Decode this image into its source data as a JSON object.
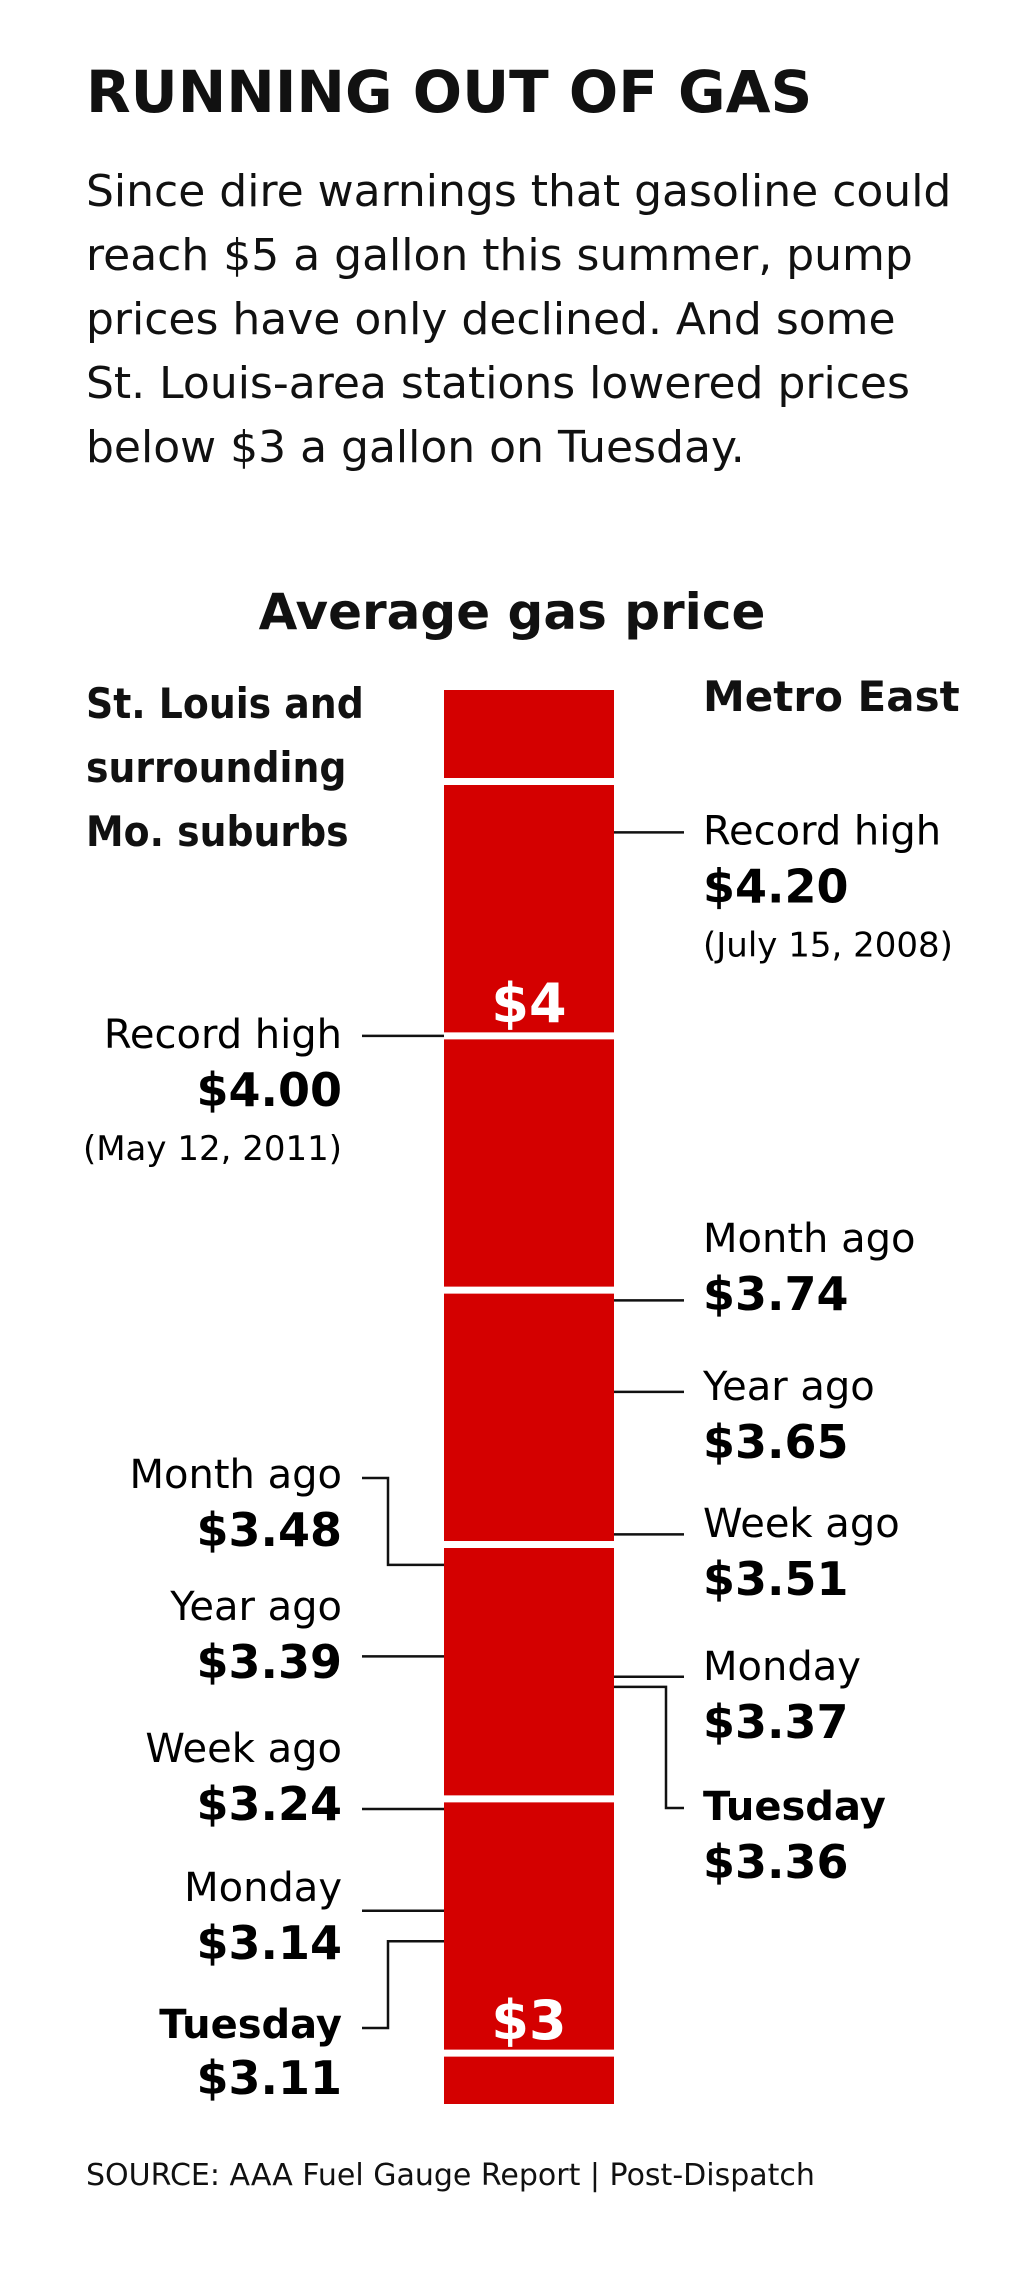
{
  "headline": "RUNNING OUT OF GAS",
  "intro": "Since dire warnings that gasoline could reach $5 a gallon this summer, pump prices have only declined. And some St. Louis-area stations lowered prices below $3 a gallon on Tuesday.",
  "source": "SOURCE: AAA Fuel Gauge Report  |  Post-Dispatch",
  "colors": {
    "bar": "#d40000",
    "divider": "#ffffff",
    "leader": "#111111"
  },
  "chart_data": {
    "type": "bar",
    "title": "Average gas price",
    "scale_labels": [
      {
        "label": "$4",
        "value": 4.0
      },
      {
        "label": "$3",
        "value": 3.0
      }
    ],
    "ylim": [
      2.95,
      4.34
    ],
    "series": [
      {
        "name": "St. Louis and surrounding Mo. suburbs",
        "side": "left",
        "points": [
          {
            "label": "Record high",
            "value": 4.0,
            "price": "$4.00",
            "note": "(May 12, 2011)"
          },
          {
            "label": "Month ago",
            "value": 3.48,
            "price": "$3.48"
          },
          {
            "label": "Year ago",
            "value": 3.39,
            "price": "$3.39"
          },
          {
            "label": "Week ago",
            "value": 3.24,
            "price": "$3.24"
          },
          {
            "label": "Monday",
            "value": 3.14,
            "price": "$3.14"
          },
          {
            "label": "Tuesday",
            "value": 3.11,
            "price": "$3.11",
            "bold_label": true
          }
        ]
      },
      {
        "name": "Metro East",
        "side": "right",
        "points": [
          {
            "label": "Record high",
            "value": 4.2,
            "price": "$4.20",
            "note": "(July 15, 2008)"
          },
          {
            "label": "Month ago",
            "value": 3.74,
            "price": "$3.74"
          },
          {
            "label": "Year ago",
            "value": 3.65,
            "price": "$3.65"
          },
          {
            "label": "Week ago",
            "value": 3.51,
            "price": "$3.51"
          },
          {
            "label": "Monday",
            "value": 3.37,
            "price": "$3.37"
          },
          {
            "label": "Tuesday",
            "value": 3.36,
            "price": "$3.36",
            "bold_label": true
          }
        ]
      }
    ]
  }
}
